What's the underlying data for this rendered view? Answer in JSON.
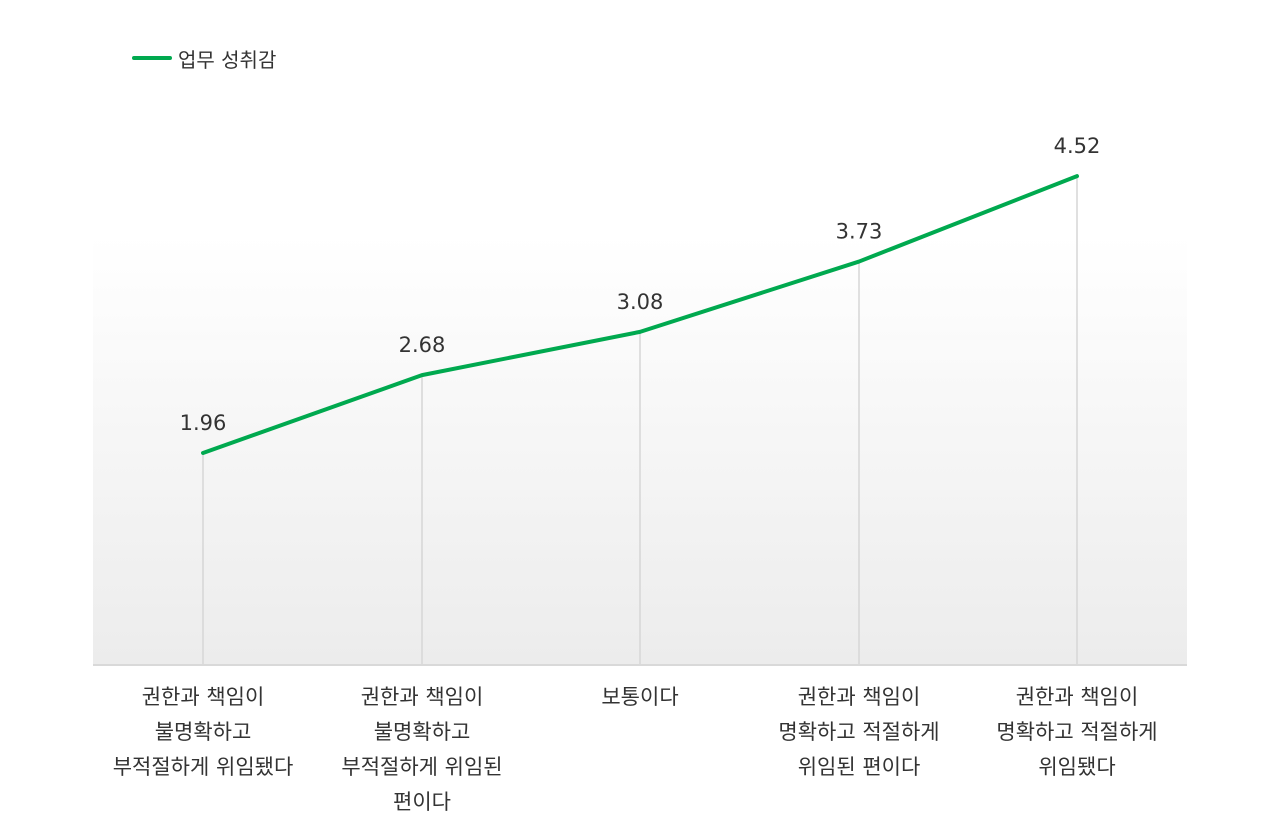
{
  "chart_data": {
    "type": "line",
    "categories": [
      "권한과 책임이 불명확하고 부적절하게 위임됐다",
      "권한과 책임이 불명확하고 부적절하게 위임된 편이다",
      "보통이다",
      "권한과 책임이 명확하고 적절하게 위임된 편이다",
      "권한과 책임이 명확하고 적절하게 위임됐다"
    ],
    "category_lines": [
      [
        "권한과 책임이",
        "불명확하고",
        "부적절하게 위임됐다"
      ],
      [
        "권한과 책임이",
        "불명확하고",
        "부적절하게 위임된",
        "편이다"
      ],
      [
        "보통이다"
      ],
      [
        "권한과 책임이",
        "명확하고 적절하게",
        "위임된 편이다"
      ],
      [
        "권한과 책임이",
        "명확하고 적절하게",
        "위임됐다"
      ]
    ],
    "series": [
      {
        "name": "업무 성취감",
        "values": [
          1.96,
          2.68,
          3.08,
          3.73,
          4.52
        ],
        "color": "#00a94f"
      }
    ],
    "data_labels": [
      "1.96",
      "2.68",
      "3.08",
      "3.73",
      "4.52"
    ],
    "ylim": [
      0,
      5
    ],
    "grid": false,
    "legend_position": "top-left",
    "axis_color": "#d9d9d9"
  }
}
